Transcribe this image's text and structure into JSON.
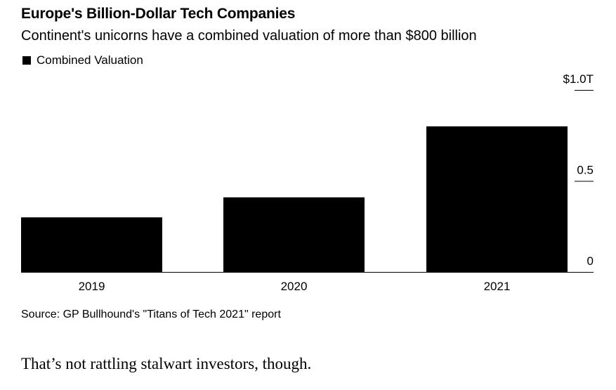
{
  "title": "Europe's Billion-Dollar Tech Companies",
  "subtitle": "Continent's unicorns have a combined valuation of more than $800 billion",
  "source": "Source: GP Bullhound's \"Titans of Tech 2021\" report",
  "caption": "That’s not rattling stalwart investors, though.",
  "chart_data": {
    "type": "bar",
    "categories": [
      "2019",
      "2020",
      "2021"
    ],
    "series": [
      {
        "name": "Combined Valuation",
        "values": [
          0.3,
          0.41,
          0.8
        ],
        "color": "#000000"
      }
    ],
    "ylim": [
      0,
      1.0
    ],
    "yticks": [
      {
        "value": 0,
        "label": "0"
      },
      {
        "value": 0.5,
        "label": "0.5"
      },
      {
        "value": 1.0,
        "label": "$1.0T"
      }
    ],
    "legend_position": "top-left",
    "grid": false,
    "xlabel": "",
    "ylabel": ""
  }
}
